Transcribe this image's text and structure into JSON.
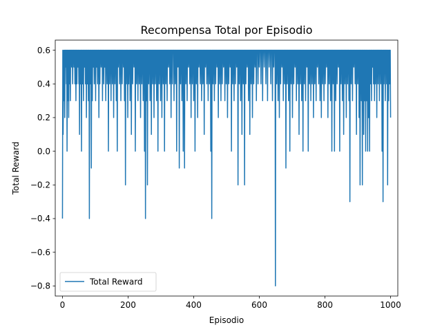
{
  "chart_data": {
    "type": "line",
    "title": "Recompensa Total por Episodio",
    "xlabel": "Episodio",
    "ylabel": "Total Reward",
    "xlim": [
      -22,
      1022
    ],
    "ylim": [
      -0.86,
      0.66
    ],
    "xticks": [
      0,
      200,
      400,
      600,
      800,
      1000
    ],
    "xtick_labels": [
      "0",
      "200",
      "400",
      "600",
      "800",
      "1000"
    ],
    "yticks": [
      -0.8,
      -0.6,
      -0.4,
      -0.2,
      0.0,
      0.2,
      0.4,
      0.6
    ],
    "ytick_labels": [
      "−0.8",
      "−0.6",
      "−0.4",
      "−0.2",
      "0.0",
      "0.2",
      "0.4",
      "0.6"
    ],
    "grid": false,
    "legend": {
      "placement": "lower-left",
      "entries": [
        "Total Reward"
      ]
    },
    "series": [
      {
        "name": "Total Reward",
        "color": "#1f77b4",
        "n_points": 1001,
        "baseline": 0.6,
        "dips": [
          [
            0,
            -0.4
          ],
          [
            2,
            0.1
          ],
          [
            3,
            0.4
          ],
          [
            5,
            0.3
          ],
          [
            7,
            0.2
          ],
          [
            9,
            0.5
          ],
          [
            12,
            0.4
          ],
          [
            14,
            0.0
          ],
          [
            17,
            0.3
          ],
          [
            19,
            0.2
          ],
          [
            22,
            0.4
          ],
          [
            24,
            0.3
          ],
          [
            28,
            0.5
          ],
          [
            31,
            0.4
          ],
          [
            35,
            0.5
          ],
          [
            38,
            0.4
          ],
          [
            41,
            0.3
          ],
          [
            44,
            0.4
          ],
          [
            47,
            0.5
          ],
          [
            50,
            0.4
          ],
          [
            52,
            0.1
          ],
          [
            55,
            0.4
          ],
          [
            58,
            0.0
          ],
          [
            61,
            0.4
          ],
          [
            64,
            0.3
          ],
          [
            67,
            0.5
          ],
          [
            70,
            0.4
          ],
          [
            73,
            0.2
          ],
          [
            76,
            0.4
          ],
          [
            79,
            0.3
          ],
          [
            82,
            -0.4
          ],
          [
            85,
            0.4
          ],
          [
            88,
            -0.1
          ],
          [
            91,
            0.3
          ],
          [
            94,
            0.5
          ],
          [
            97,
            0.4
          ],
          [
            101,
            0.3
          ],
          [
            104,
            0.5
          ],
          [
            107,
            0.4
          ],
          [
            111,
            0.2
          ],
          [
            114,
            0.4
          ],
          [
            118,
            0.5
          ],
          [
            122,
            0.3
          ],
          [
            126,
            0.4
          ],
          [
            129,
            0.5
          ],
          [
            132,
            0.3
          ],
          [
            136,
            0.4
          ],
          [
            140,
            0.0
          ],
          [
            144,
            0.4
          ],
          [
            148,
            0.3
          ],
          [
            152,
            0.4
          ],
          [
            156,
            0.2
          ],
          [
            160,
            0.4
          ],
          [
            164,
            0.3
          ],
          [
            167,
            0.0
          ],
          [
            170,
            0.5
          ],
          [
            174,
            0.4
          ],
          [
            178,
            0.3
          ],
          [
            182,
            0.4
          ],
          [
            186,
            0.5
          ],
          [
            189,
            0.3
          ],
          [
            192,
            -0.2
          ],
          [
            195,
            0.4
          ],
          [
            199,
            0.2
          ],
          [
            202,
            0.4
          ],
          [
            206,
            0.3
          ],
          [
            210,
            0.1
          ],
          [
            214,
            0.4
          ],
          [
            218,
            0.5
          ],
          [
            222,
            0.0
          ],
          [
            226,
            0.4
          ],
          [
            230,
            0.3
          ],
          [
            234,
            0.4
          ],
          [
            238,
            0.2
          ],
          [
            242,
            0.4
          ],
          [
            246,
            0.3
          ],
          [
            250,
            0.0
          ],
          [
            253,
            -0.4
          ],
          [
            256,
            0.3
          ],
          [
            259,
            -0.2
          ],
          [
            263,
            0.4
          ],
          [
            267,
            0.3
          ],
          [
            271,
            0.1
          ],
          [
            275,
            0.4
          ],
          [
            279,
            0.2
          ],
          [
            283,
            0.4
          ],
          [
            287,
            0.3
          ],
          [
            291,
            0.0
          ],
          [
            295,
            0.4
          ],
          [
            299,
            0.3
          ],
          [
            303,
            0.2
          ],
          [
            307,
            0.4
          ],
          [
            311,
            0.0
          ],
          [
            315,
            0.4
          ],
          [
            319,
            0.3
          ],
          [
            323,
            0.5
          ],
          [
            327,
            0.4
          ],
          [
            331,
            0.2
          ],
          [
            335,
            0.4
          ],
          [
            340,
            0.3
          ],
          [
            344,
            0.4
          ],
          [
            348,
            0.0
          ],
          [
            352,
            0.5
          ],
          [
            356,
            -0.1
          ],
          [
            360,
            0.4
          ],
          [
            364,
            0.3
          ],
          [
            368,
            0.0
          ],
          [
            372,
            -0.1
          ],
          [
            376,
            0.4
          ],
          [
            380,
            0.3
          ],
          [
            384,
            0.5
          ],
          [
            388,
            0.4
          ],
          [
            392,
            0.2
          ],
          [
            396,
            0.4
          ],
          [
            400,
            0.3
          ],
          [
            404,
            0.0
          ],
          [
            408,
            0.4
          ],
          [
            412,
            0.2
          ],
          [
            416,
            0.5
          ],
          [
            420,
            0.4
          ],
          [
            424,
            0.3
          ],
          [
            428,
            0.4
          ],
          [
            432,
            0.1
          ],
          [
            436,
            0.5
          ],
          [
            440,
            0.4
          ],
          [
            444,
            0.3
          ],
          [
            448,
            0.4
          ],
          [
            452,
            0.0
          ],
          [
            455,
            -0.4
          ],
          [
            459,
            0.4
          ],
          [
            463,
            0.3
          ],
          [
            467,
            0.4
          ],
          [
            471,
            0.5
          ],
          [
            475,
            0.2
          ],
          [
            479,
            0.4
          ],
          [
            483,
            0.3
          ],
          [
            487,
            0.4
          ],
          [
            491,
            0.5
          ],
          [
            495,
            0.3
          ],
          [
            499,
            0.4
          ],
          [
            503,
            0.2
          ],
          [
            507,
            0.4
          ],
          [
            511,
            0.5
          ],
          [
            515,
            0.0
          ],
          [
            519,
            0.4
          ],
          [
            523,
            0.3
          ],
          [
            527,
            0.4
          ],
          [
            531,
            0.5
          ],
          [
            535,
            -0.2
          ],
          [
            539,
            0.4
          ],
          [
            543,
            0.3
          ],
          [
            547,
            0.1
          ],
          [
            551,
            0.4
          ],
          [
            555,
            -0.2
          ],
          [
            559,
            0.4
          ],
          [
            563,
            0.5
          ],
          [
            567,
            0.3
          ],
          [
            571,
            0.1
          ],
          [
            575,
            0.4
          ],
          [
            579,
            0.2
          ],
          [
            583,
            0.4
          ],
          [
            587,
            0.5
          ],
          [
            591,
            0.3
          ],
          [
            596,
            0.4
          ],
          [
            600,
            0.5
          ],
          [
            605,
            0.4
          ],
          [
            610,
            0.3
          ],
          [
            615,
            0.5
          ],
          [
            620,
            0.4
          ],
          [
            625,
            0.3
          ],
          [
            630,
            0.5
          ],
          [
            635,
            0.4
          ],
          [
            640,
            0.3
          ],
          [
            644,
            0.5
          ],
          [
            649,
            -0.8
          ],
          [
            653,
            0.4
          ],
          [
            657,
            0.3
          ],
          [
            661,
            0.2
          ],
          [
            665,
            0.4
          ],
          [
            669,
            0.5
          ],
          [
            673,
            0.3
          ],
          [
            677,
            0.4
          ],
          [
            681,
            -0.1
          ],
          [
            685,
            0.4
          ],
          [
            689,
            0.3
          ],
          [
            693,
            0.0
          ],
          [
            697,
            0.4
          ],
          [
            701,
            0.2
          ],
          [
            705,
            0.4
          ],
          [
            709,
            0.5
          ],
          [
            713,
            0.3
          ],
          [
            717,
            0.4
          ],
          [
            721,
            0.1
          ],
          [
            725,
            0.4
          ],
          [
            729,
            0.3
          ],
          [
            733,
            0.0
          ],
          [
            737,
            0.4
          ],
          [
            741,
            0.3
          ],
          [
            745,
            0.5
          ],
          [
            749,
            0.0
          ],
          [
            753,
            0.4
          ],
          [
            757,
            0.3
          ],
          [
            761,
            0.4
          ],
          [
            765,
            0.2
          ],
          [
            769,
            0.4
          ],
          [
            773,
            0.3
          ],
          [
            777,
            0.5
          ],
          [
            781,
            0.4
          ],
          [
            785,
            0.3
          ],
          [
            789,
            0.2
          ],
          [
            793,
            0.4
          ],
          [
            797,
            0.3
          ],
          [
            801,
            0.4
          ],
          [
            805,
            0.5
          ],
          [
            809,
            0.2
          ],
          [
            813,
            0.4
          ],
          [
            817,
            0.3
          ],
          [
            821,
            0.0
          ],
          [
            825,
            0.4
          ],
          [
            829,
            0.0
          ],
          [
            833,
            0.3
          ],
          [
            837,
            0.4
          ],
          [
            841,
            0.5
          ],
          [
            845,
            0.0
          ],
          [
            849,
            0.4
          ],
          [
            853,
            0.3
          ],
          [
            857,
            0.1
          ],
          [
            861,
            0.4
          ],
          [
            865,
            0.2
          ],
          [
            869,
            0.4
          ],
          [
            873,
            0.3
          ],
          [
            876,
            -0.3
          ],
          [
            880,
            0.4
          ],
          [
            884,
            0.3
          ],
          [
            888,
            0.5
          ],
          [
            892,
            0.4
          ],
          [
            896,
            0.1
          ],
          [
            900,
            0.4
          ],
          [
            904,
            0.2
          ],
          [
            907,
            -0.2
          ],
          [
            911,
            0.3
          ],
          [
            914,
            -0.2
          ],
          [
            918,
            0.1
          ],
          [
            921,
            0.3
          ],
          [
            924,
            0.0
          ],
          [
            927,
            0.3
          ],
          [
            930,
            0.0
          ],
          [
            933,
            0.2
          ],
          [
            936,
            0.0
          ],
          [
            939,
            0.4
          ],
          [
            942,
            0.3
          ],
          [
            945,
            0.5
          ],
          [
            948,
            0.4
          ],
          [
            951,
            0.3
          ],
          [
            954,
            0.4
          ],
          [
            958,
            0.2
          ],
          [
            962,
            0.4
          ],
          [
            966,
            0.3
          ],
          [
            970,
            0.4
          ],
          [
            974,
            0.0
          ],
          [
            977,
            -0.3
          ],
          [
            980,
            0.4
          ],
          [
            984,
            0.3
          ],
          [
            988,
            0.4
          ],
          [
            991,
            -0.2
          ],
          [
            994,
            0.3
          ],
          [
            997,
            0.4
          ],
          [
            1000,
            0.2
          ]
        ]
      }
    ]
  }
}
